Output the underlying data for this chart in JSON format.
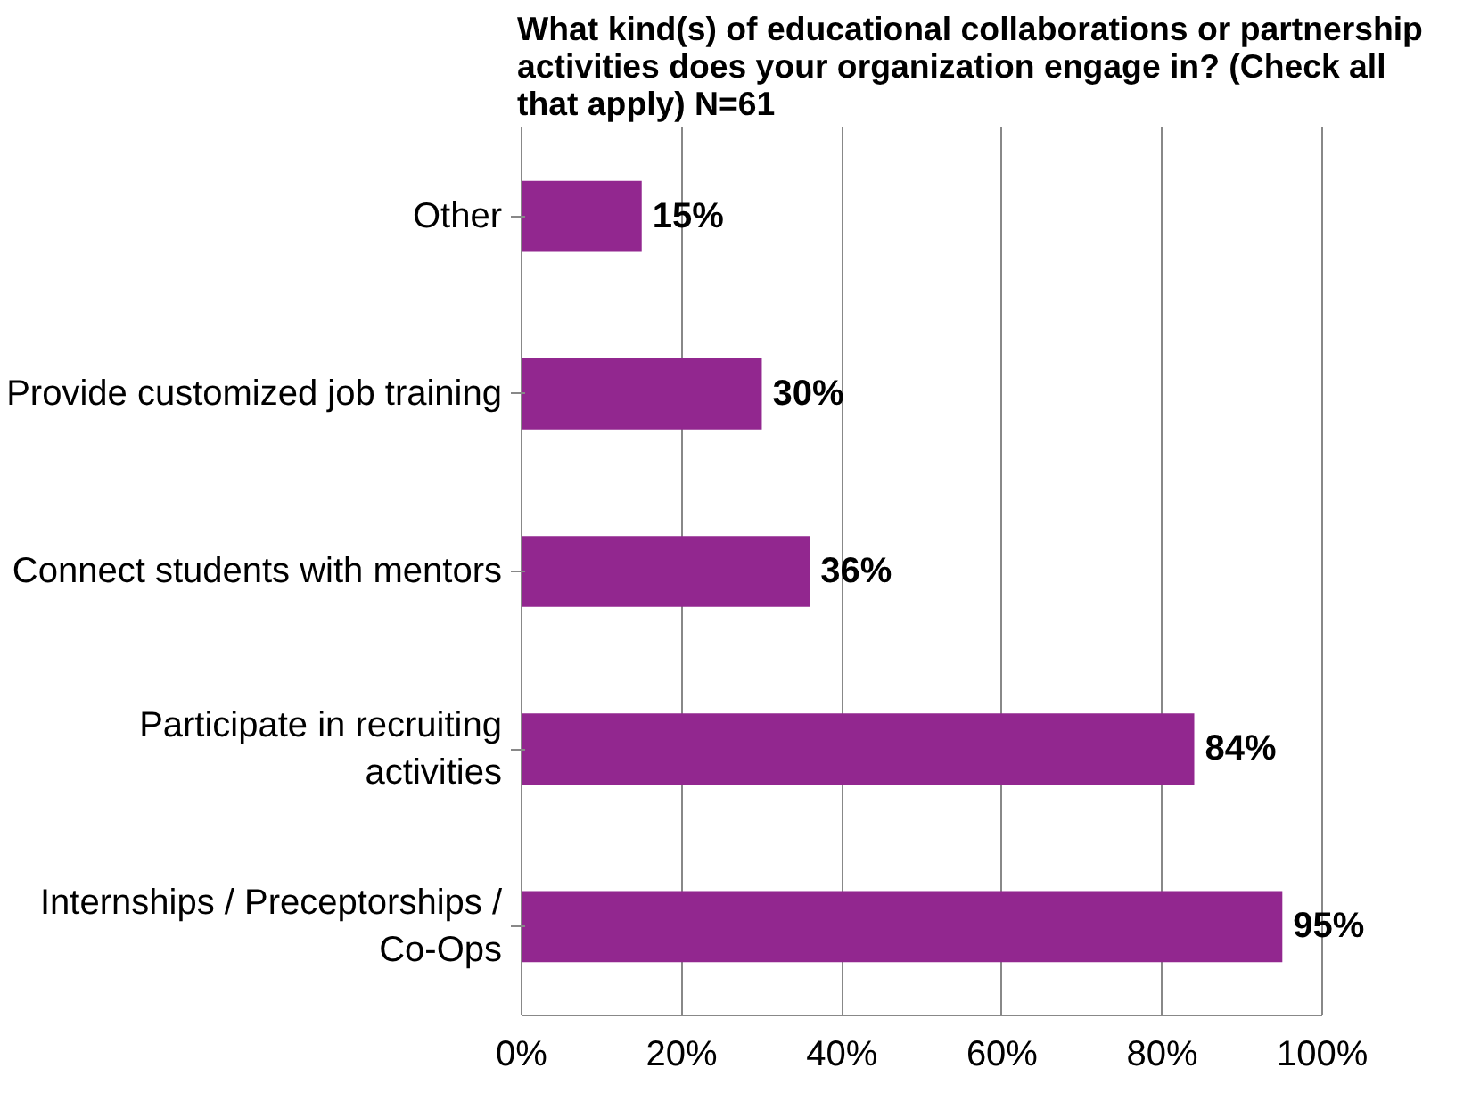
{
  "chart_data": {
    "type": "bar",
    "orientation": "horizontal",
    "title": "What kind(s) of educational collaborations or partnership activities does your organization engage in? (Check all that apply)  N=61",
    "categories": [
      "Other",
      "Provide customized job training",
      "Connect students with mentors",
      "Participate in recruiting activities",
      "Internships / Preceptorships / Co-Ops"
    ],
    "values": [
      15,
      30,
      36,
      84,
      95
    ],
    "value_labels": [
      "15%",
      "30%",
      "36%",
      "84%",
      "95%"
    ],
    "color": "#92278f",
    "xlim": [
      0,
      100
    ],
    "xticks": [
      {
        "value": 0,
        "label": "0%"
      },
      {
        "value": 20,
        "label": "20%"
      },
      {
        "value": 40,
        "label": "40%"
      },
      {
        "value": 60,
        "label": "60%"
      },
      {
        "value": 80,
        "label": "80%"
      },
      {
        "value": 100,
        "label": "100%"
      }
    ],
    "grid": "x"
  }
}
